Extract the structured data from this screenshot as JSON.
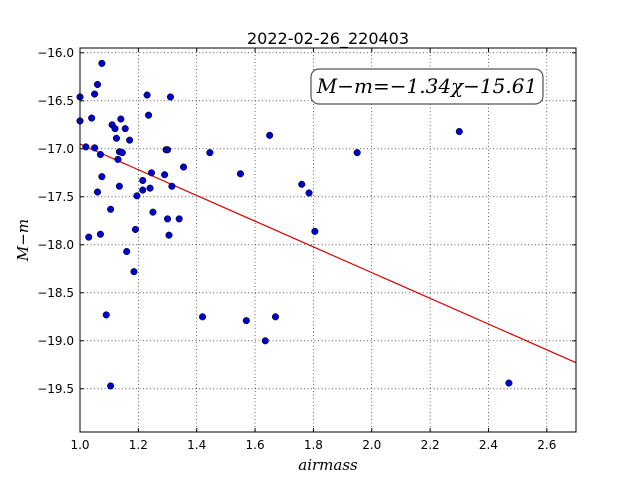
{
  "chart_data": {
    "type": "scatter",
    "title": "2022-02-26_220403",
    "xlabel": "airmass",
    "ylabel": "M−m",
    "xlim": [
      1.0,
      2.7
    ],
    "ylim": [
      -15.95,
      -19.95
    ],
    "y_inverted": true,
    "xticks": [
      1.0,
      1.2,
      1.4,
      1.6,
      1.8,
      2.0,
      2.2,
      2.4,
      2.6
    ],
    "xtick_labels": [
      "1.0",
      "1.2",
      "1.4",
      "1.6",
      "1.8",
      "2.0",
      "2.2",
      "2.4",
      "2.6"
    ],
    "yticks": [
      -16.0,
      -16.5,
      -17.0,
      -17.5,
      -18.0,
      -18.5,
      -19.0,
      -19.5
    ],
    "ytick_labels": [
      "−16.0",
      "−16.5",
      "−17.0",
      "−17.5",
      "−18.0",
      "−18.5",
      "−19.0",
      "−19.5"
    ],
    "grid": true,
    "series": [
      {
        "color": "#0000cc",
        "points": [
          [
            1.0,
            -16.46
          ],
          [
            1.0,
            -16.71
          ],
          [
            1.02,
            -16.98
          ],
          [
            1.03,
            -17.92
          ],
          [
            1.04,
            -16.68
          ],
          [
            1.05,
            -16.43
          ],
          [
            1.05,
            -16.99
          ],
          [
            1.06,
            -16.33
          ],
          [
            1.06,
            -17.45
          ],
          [
            1.07,
            -17.06
          ],
          [
            1.07,
            -17.89
          ],
          [
            1.075,
            -16.11
          ],
          [
            1.075,
            -17.29
          ],
          [
            1.09,
            -18.73
          ],
          [
            1.105,
            -17.63
          ],
          [
            1.105,
            -19.47
          ],
          [
            1.11,
            -16.75
          ],
          [
            1.12,
            -16.79
          ],
          [
            1.125,
            -16.89
          ],
          [
            1.13,
            -17.11
          ],
          [
            1.135,
            -17.03
          ],
          [
            1.135,
            -17.39
          ],
          [
            1.14,
            -16.69
          ],
          [
            1.145,
            -17.04
          ],
          [
            1.155,
            -16.79
          ],
          [
            1.16,
            -18.07
          ],
          [
            1.17,
            -16.91
          ],
          [
            1.185,
            -18.28
          ],
          [
            1.19,
            -17.84
          ],
          [
            1.195,
            -17.49
          ],
          [
            1.215,
            -17.33
          ],
          [
            1.215,
            -17.43
          ],
          [
            1.23,
            -16.44
          ],
          [
            1.235,
            -16.65
          ],
          [
            1.24,
            -17.41
          ],
          [
            1.245,
            -17.25
          ],
          [
            1.25,
            -17.66
          ],
          [
            1.29,
            -17.27
          ],
          [
            1.295,
            -17.01
          ],
          [
            1.3,
            -17.73
          ],
          [
            1.3,
            -17.01
          ],
          [
            1.305,
            -17.9
          ],
          [
            1.31,
            -16.46
          ],
          [
            1.315,
            -17.39
          ],
          [
            1.34,
            -17.73
          ],
          [
            1.355,
            -17.19
          ],
          [
            1.42,
            -18.75
          ],
          [
            1.445,
            -17.04
          ],
          [
            1.55,
            -17.26
          ],
          [
            1.57,
            -18.79
          ],
          [
            1.635,
            -19.0
          ],
          [
            1.65,
            -16.86
          ],
          [
            1.67,
            -18.75
          ],
          [
            1.76,
            -17.37
          ],
          [
            1.785,
            -17.46
          ],
          [
            1.805,
            -17.86
          ],
          [
            1.95,
            -17.04
          ],
          [
            2.3,
            -16.82
          ],
          [
            2.47,
            -19.44
          ]
        ]
      }
    ],
    "fit": {
      "label": "M−m=−1.34χ−15.61",
      "slope": -1.34,
      "intercept": -15.61,
      "x_range": [
        1.0,
        2.7
      ],
      "color": "#dd0000",
      "label_position": "top-right"
    }
  }
}
